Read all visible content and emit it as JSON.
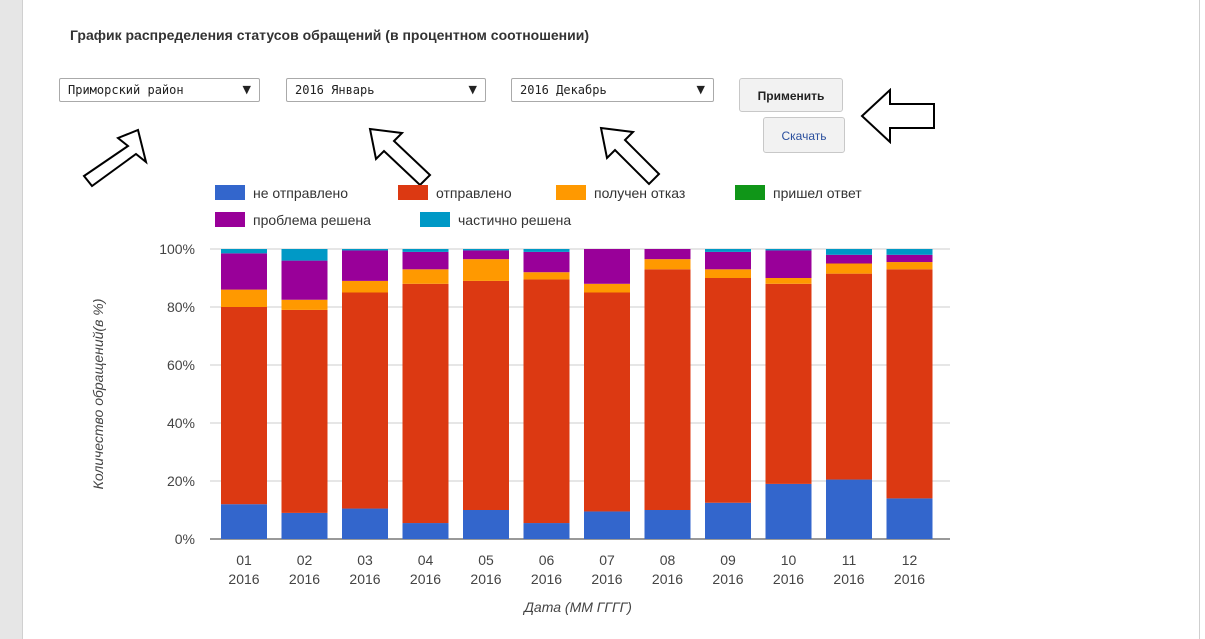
{
  "page_title": "График распределения статусов обращений (в процентном соотношении)",
  "filters": {
    "district": "Приморский район",
    "date_from": "2016 Январь",
    "date_to": "2016 Декабрь",
    "dropdown_arrow": "▼"
  },
  "buttons": {
    "apply": "Применить",
    "download": "Скачать"
  },
  "annotations": {
    "pointer_arrows": [
      "arrow-outline-icon",
      "arrow-outline-icon",
      "arrow-outline-icon",
      "arrow-outline-icon"
    ]
  },
  "chart_data": {
    "type": "bar",
    "stacked": true,
    "percent": true,
    "xlabel": "Дата (ММ ГГГГ)",
    "ylabel": "Количество обращений(в %)",
    "ylim": [
      0,
      100
    ],
    "yticks": [
      "0%",
      "20%",
      "40%",
      "60%",
      "80%",
      "100%"
    ],
    "categories": [
      [
        "01",
        "2016"
      ],
      [
        "02",
        "2016"
      ],
      [
        "03",
        "2016"
      ],
      [
        "04",
        "2016"
      ],
      [
        "05",
        "2016"
      ],
      [
        "06",
        "2016"
      ],
      [
        "07",
        "2016"
      ],
      [
        "08",
        "2016"
      ],
      [
        "09",
        "2016"
      ],
      [
        "10",
        "2016"
      ],
      [
        "11",
        "2016"
      ],
      [
        "12",
        "2016"
      ]
    ],
    "grid": true,
    "legend_position": "top",
    "series": [
      {
        "name": "не отправлено",
        "color": "#3366cc",
        "values": [
          12,
          9,
          10.5,
          5.5,
          10,
          5.5,
          9.5,
          10,
          12.5,
          19,
          20.5,
          14
        ]
      },
      {
        "name": "отправлено",
        "color": "#dc3912",
        "values": [
          68,
          70,
          74.5,
          82.5,
          79,
          84,
          75.5,
          83,
          77.5,
          69,
          71,
          79
        ]
      },
      {
        "name": "получен отказ",
        "color": "#ff9900",
        "values": [
          6,
          3.5,
          4,
          5,
          7.5,
          2.5,
          3,
          3.5,
          3,
          2,
          3.5,
          2.5
        ]
      },
      {
        "name": "пришел ответ",
        "color": "#109618",
        "values": [
          0,
          0,
          0,
          0,
          0,
          0,
          0,
          0,
          0,
          0,
          0,
          0
        ]
      },
      {
        "name": "проблема решена",
        "color": "#990099",
        "values": [
          12.5,
          13.5,
          10.5,
          6,
          3,
          7,
          12,
          3.5,
          6,
          9.5,
          3,
          2.5
        ]
      },
      {
        "name": "частично решена",
        "color": "#0099c6",
        "values": [
          1.5,
          4,
          0.5,
          1,
          0.5,
          1,
          0,
          0,
          1,
          0.5,
          2,
          2
        ]
      }
    ]
  }
}
